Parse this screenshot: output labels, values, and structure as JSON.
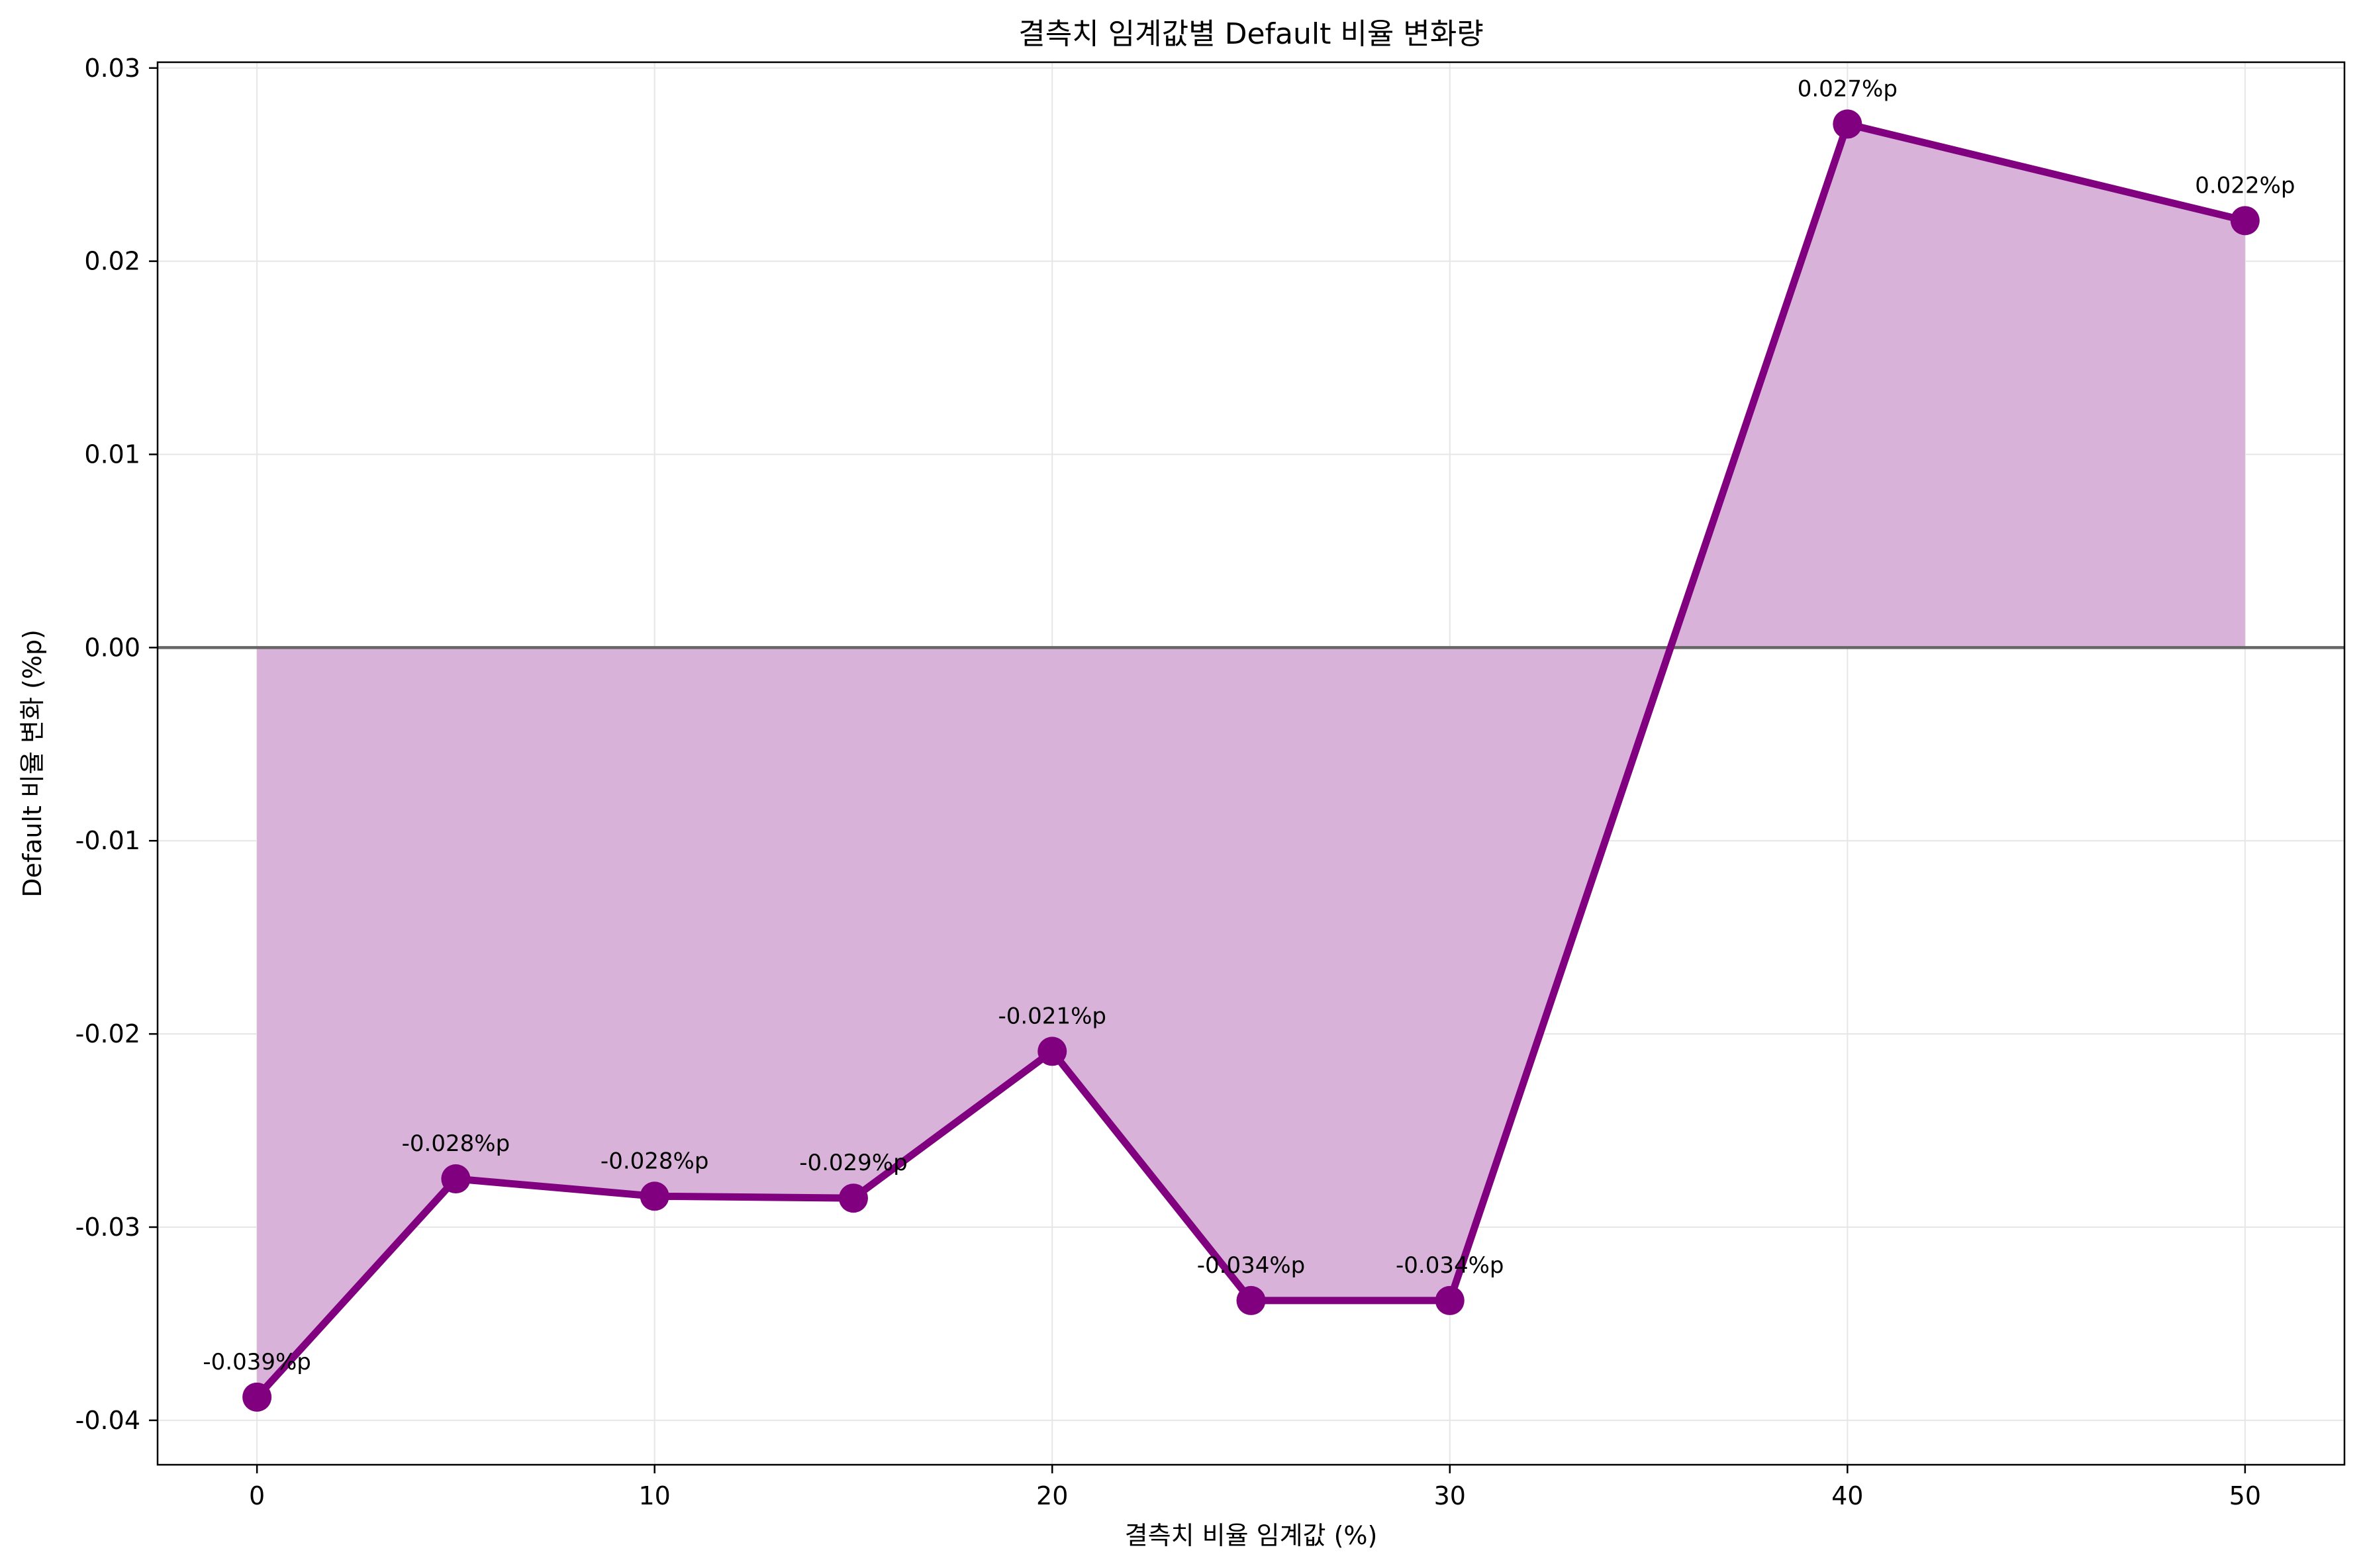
{
  "chart_data": {
    "type": "line",
    "title": "결측치 임계값별 Default 비율 변화량",
    "xlabel": "결측치 비율 임계값 (%)",
    "ylabel": "Default 비율 변화 (%p)",
    "x": [
      0,
      5,
      10,
      15,
      20,
      25,
      30,
      40,
      50
    ],
    "series": [
      {
        "values": [
          -0.0388,
          -0.0275,
          -0.0284,
          -0.0285,
          -0.0209,
          -0.0338,
          -0.0338,
          0.0271,
          0.0221
        ],
        "labels": [
          "-0.039%p",
          "-0.028%p",
          "-0.028%p",
          "-0.029%p",
          "-0.021%p",
          "-0.034%p",
          "-0.034%p",
          "0.027%p",
          "0.022%p"
        ]
      }
    ],
    "xlim": [
      -2.5,
      52.5
    ],
    "ylim": [
      -0.0423,
      0.0303
    ],
    "xticks": [
      0,
      10,
      20,
      30,
      40,
      50
    ],
    "xtick_labels": [
      "0",
      "10",
      "20",
      "30",
      "40",
      "50"
    ],
    "yticks": [
      -0.04,
      -0.03,
      -0.02,
      -0.01,
      0.0,
      0.01,
      0.02,
      0.03
    ],
    "ytick_labels": [
      "-0.04",
      "-0.03",
      "-0.02",
      "-0.01",
      "0.00",
      "0.01",
      "0.02",
      "0.03"
    ],
    "reference_line_y": 0,
    "grid": true,
    "fill_to_zero": true,
    "colors": {
      "line": "#800080",
      "fill": "#d8b2d8",
      "reference": "#666666",
      "grid": "#e6e6e6"
    }
  }
}
